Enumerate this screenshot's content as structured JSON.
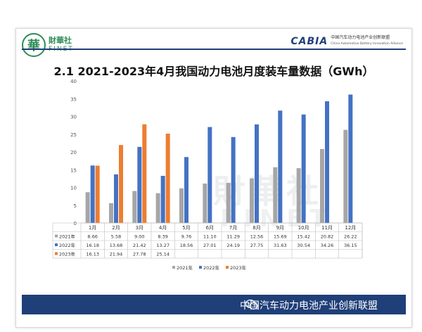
{
  "header": {
    "logo_cn": "財華社",
    "logo_en": "FINET",
    "logo_char": "華",
    "cabia_mark": "CABIA",
    "cabia_cn": "中国汽车动力电池产业创新联盟",
    "cabia_en": "China Automotive Battery Innovation Alliance"
  },
  "title": "2.1  2021-2023年4月我国动力电池月度装车量数据（GWh）",
  "watermark": {
    "line1": "財華社",
    "line2": "FINET"
  },
  "footer": {
    "text": "中国汽车动力电池产业创新联盟"
  },
  "colors": {
    "2021": "#a6a6a6",
    "2022": "#4472c4",
    "2023": "#ed7d31",
    "footer_bg": "#1f3f78"
  },
  "chart_data": {
    "type": "bar",
    "categories": [
      "1月",
      "2月",
      "3月",
      "4月",
      "5月",
      "6月",
      "7月",
      "8月",
      "9月",
      "10月",
      "11月",
      "12月"
    ],
    "ylim": [
      0,
      40
    ],
    "yticks": [
      0,
      5,
      10,
      15,
      20,
      25,
      30,
      35,
      40
    ],
    "series": [
      {
        "name": "2021年",
        "values": [
          8.66,
          5.58,
          9.0,
          8.39,
          9.76,
          11.1,
          11.29,
          12.56,
          15.69,
          15.42,
          20.82,
          26.22
        ]
      },
      {
        "name": "2022年",
        "values": [
          16.18,
          13.68,
          21.42,
          13.27,
          18.56,
          27.01,
          24.19,
          27.75,
          31.63,
          30.54,
          34.26,
          36.15
        ]
      },
      {
        "name": "2023年",
        "values": [
          16.13,
          21.94,
          27.78,
          25.14,
          null,
          null,
          null,
          null,
          null,
          null,
          null,
          null
        ]
      }
    ],
    "table_labels": [
      "2021年",
      "2022年",
      "2023年"
    ],
    "table_values": [
      [
        "8.66",
        "5.58",
        "9.00",
        "8.39",
        "9.76",
        "11.10",
        "11.29",
        "12.56",
        "15.69",
        "15.42",
        "20.82",
        "26.22"
      ],
      [
        "16.18",
        "13.68",
        "21.42",
        "13.27",
        "18.56",
        "27.01",
        "24.19",
        "27.75",
        "31.63",
        "30.54",
        "34.26",
        "36.15"
      ],
      [
        "16.13",
        "21.94",
        "27.78",
        "25.14",
        "",
        "",
        "",
        "",
        "",
        "",
        "",
        ""
      ]
    ],
    "legend": [
      "2021年",
      "2022年",
      "2023年"
    ],
    "grid": false,
    "legend_position": "bottom"
  }
}
